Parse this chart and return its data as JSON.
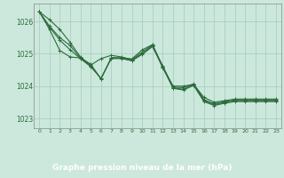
{
  "title": "Graphe pression niveau de la mer (hPa)",
  "bg_color": "#cce8dc",
  "plot_bg_color": "#cce8dc",
  "grid_color": "#aacfbf",
  "line_color": "#2d6b3c",
  "label_bg_color": "#3a7a4a",
  "label_text_color": "#ffffff",
  "xlim": [
    -0.5,
    23.5
  ],
  "ylim": [
    1022.7,
    1026.55
  ],
  "yticks": [
    1023,
    1024,
    1025,
    1026
  ],
  "xticks": [
    0,
    1,
    2,
    3,
    4,
    5,
    6,
    7,
    8,
    9,
    10,
    11,
    12,
    13,
    14,
    15,
    16,
    17,
    18,
    19,
    20,
    21,
    22,
    23
  ],
  "series": [
    [
      1026.3,
      1026.05,
      1025.75,
      1025.35,
      1024.9,
      1024.65,
      1024.85,
      1024.95,
      1024.9,
      1024.82,
      1025.05,
      1025.28,
      1024.6,
      1024.0,
      1024.0,
      1024.05,
      1023.65,
      1023.5,
      1023.55,
      1023.6,
      1023.6,
      1023.6,
      1023.6,
      1023.6
    ],
    [
      1026.3,
      1025.75,
      1025.1,
      1024.9,
      1024.87,
      1024.68,
      1024.22,
      1024.88,
      1024.87,
      1024.84,
      1025.12,
      1025.28,
      1024.56,
      1023.97,
      1023.95,
      1024.07,
      1023.58,
      1023.45,
      1023.52,
      1023.57,
      1023.57,
      1023.57,
      1023.57,
      1023.57
    ],
    [
      1026.3,
      1025.85,
      1025.5,
      1025.25,
      1024.87,
      1024.62,
      1024.23,
      1024.87,
      1024.87,
      1024.8,
      1025.0,
      1025.25,
      1024.62,
      1023.95,
      1023.9,
      1024.05,
      1023.55,
      1023.43,
      1023.5,
      1023.55,
      1023.55,
      1023.55,
      1023.55,
      1023.55
    ],
    [
      1026.3,
      1025.82,
      1025.42,
      1025.12,
      1024.85,
      1024.6,
      1024.24,
      1024.85,
      1024.85,
      1024.78,
      1024.98,
      1025.22,
      1024.58,
      1023.93,
      1023.88,
      1024.02,
      1023.52,
      1023.4,
      1023.47,
      1023.52,
      1023.52,
      1023.52,
      1023.52,
      1023.52
    ]
  ]
}
